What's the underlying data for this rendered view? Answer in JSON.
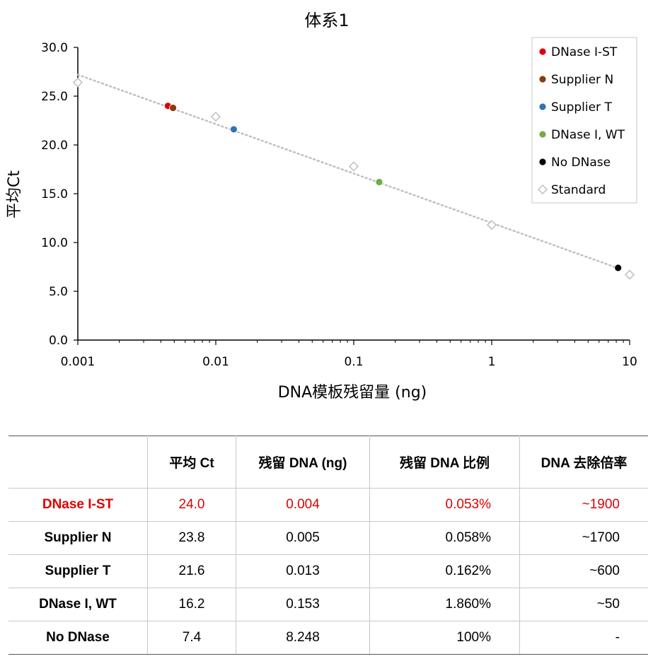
{
  "chart_data": {
    "type": "scatter",
    "title": "体系1",
    "xlabel": "DNA模板残留量 (ng)",
    "ylabel": "平均Ct",
    "x_scale": "log",
    "xlim": [
      0.001,
      10
    ],
    "ylim": [
      0,
      30
    ],
    "x_ticks": [
      "0.001",
      "0.01",
      "0.1",
      "1",
      "10"
    ],
    "y_ticks": [
      "0.0",
      "5.0",
      "10.0",
      "15.0",
      "20.0",
      "25.0",
      "30.0"
    ],
    "legend_position": "top-right",
    "series": [
      {
        "name": "DNase I-ST",
        "color": "#e00000",
        "marker": "circle",
        "points": [
          {
            "x": 0.0045,
            "y": 24.0
          }
        ]
      },
      {
        "name": "Supplier N",
        "color": "#8b3a0e",
        "marker": "circle",
        "points": [
          {
            "x": 0.0049,
            "y": 23.8
          }
        ]
      },
      {
        "name": "Supplier T",
        "color": "#2e74b5",
        "marker": "circle",
        "points": [
          {
            "x": 0.0135,
            "y": 21.6
          }
        ]
      },
      {
        "name": "DNase I, WT",
        "color": "#70ad47",
        "marker": "circle",
        "points": [
          {
            "x": 0.153,
            "y": 16.2
          }
        ]
      },
      {
        "name": "No DNase",
        "color": "#000000",
        "marker": "circle",
        "points": [
          {
            "x": 8.248,
            "y": 7.4
          }
        ]
      },
      {
        "name": "Standard",
        "color": "#bfbfbf",
        "marker": "diamond-open",
        "points": [
          {
            "x": 0.001,
            "y": 26.4
          },
          {
            "x": 0.01,
            "y": 22.9
          },
          {
            "x": 0.1,
            "y": 17.8
          },
          {
            "x": 1,
            "y": 11.8
          },
          {
            "x": 10,
            "y": 6.7
          }
        ]
      }
    ],
    "trendline": {
      "color": "#bfbfbf",
      "style": "dotted",
      "start": {
        "x": 0.001,
        "y": 27.2
      },
      "end": {
        "x": 8.5,
        "y": 7.3
      }
    }
  },
  "table": {
    "headers": [
      "",
      "平均 Ct",
      "残留 DNA (ng)",
      "残留 DNA 比例",
      "DNA 去除倍率"
    ],
    "rows": [
      {
        "name": "DNase I-ST",
        "ct": "24.0",
        "dna": "0.004",
        "pct": "0.053%",
        "fold": "~1900"
      },
      {
        "name": "Supplier N",
        "ct": "23.8",
        "dna": "0.005",
        "pct": "0.058%",
        "fold": "~1700"
      },
      {
        "name": "Supplier T",
        "ct": "21.6",
        "dna": "0.013",
        "pct": "0.162%",
        "fold": "~600"
      },
      {
        "name": "DNase I, WT",
        "ct": "16.2",
        "dna": "0.153",
        "pct": "1.860%",
        "fold": "~50"
      },
      {
        "name": "No DNase",
        "ct": "7.4",
        "dna": "8.248",
        "pct": "100%",
        "fold": "-"
      }
    ]
  }
}
